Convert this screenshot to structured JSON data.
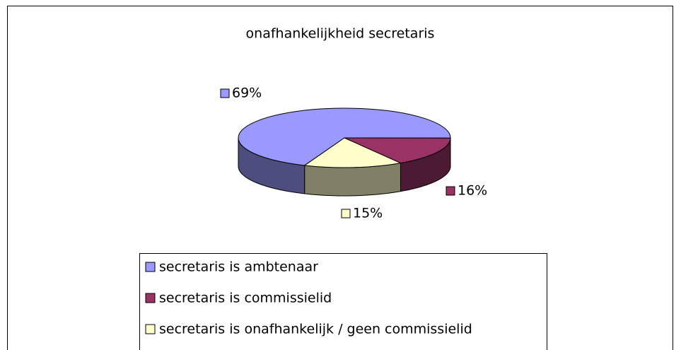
{
  "chart_data": {
    "type": "pie",
    "title": "onafhankelijkheid secretaris",
    "categories": [
      "secretaris is ambtenaar",
      "secretaris is commissielid",
      "secretaris is onafhankelijk / geen commissielid"
    ],
    "values": [
      69,
      16,
      15
    ],
    "value_labels": [
      "69%",
      "16%",
      "15%"
    ],
    "colors": [
      "#9999ff",
      "#993366",
      "#ffffcc"
    ],
    "legend": "bottom"
  }
}
